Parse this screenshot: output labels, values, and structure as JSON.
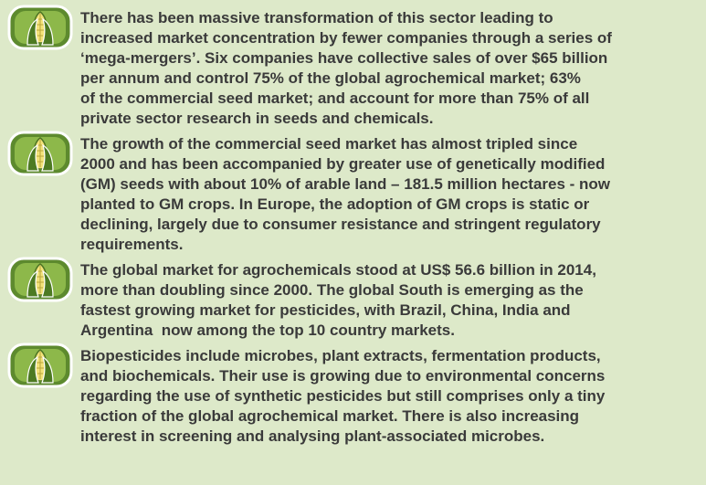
{
  "items": [
    {
      "lines": [
        "There has been massive transformation of this sector leading to",
        "increased market concentration by fewer companies through a series of",
        "‘mega-mergers’. Six companies have collective sales of over $65 billion",
        "per annum and control 75% of the global agrochemical market; 63%",
        "of the commercial seed market; and account for more than 75% of all",
        "private sector research in seeds and chemicals."
      ]
    },
    {
      "lines": [
        "The growth of the commercial seed market has almost tripled since",
        "2000 and has been accompanied by greater use of genetically modified",
        "(GM) seeds with about 10% of arable land – 181.5 million hectares - now",
        "planted to GM crops. In Europe, the adoption of GM crops is static or",
        "declining, largely due to consumer resistance and stringent regulatory",
        "requirements."
      ]
    },
    {
      "lines": [
        "The global market for agrochemicals stood at US$ 56.6 billion in 2014,",
        "more than doubling since 2000. The global South is emerging as the",
        "fastest growing market for pesticides, with Brazil, China, India and",
        "Argentina  now among the top 10 country markets."
      ]
    },
    {
      "lines": [
        "Biopesticides include microbes, plant extracts, fermentation products,",
        "and biochemicals. Their use is growing due to environmental concerns",
        "regarding the use of synthetic pesticides but still comprises only a tiny",
        "fraction of the global agrochemical market. There is also increasing",
        "interest in screening and analysing plant-associated microbes."
      ]
    }
  ]
}
